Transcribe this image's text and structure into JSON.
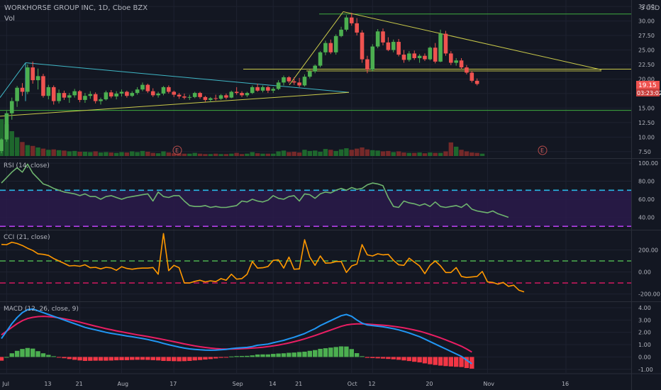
{
  "header": {
    "symbol_title": "WORKHORSE GROUP INC, 1D, Cboe BZX",
    "volume_label": "Vol",
    "currency": "USD",
    "log_toggle": "3"
  },
  "colors": {
    "background": "#131722",
    "grid": "#1e2230",
    "up": "#26a69a",
    "up_candle": "#4caf50",
    "down": "#ef5350",
    "rsi": "#6fb56f",
    "rsi_band": "#2a1a4a",
    "cci": "#ff9800",
    "macd": "#2196f3",
    "signal": "#e91e63",
    "hist_up": "#4caf50",
    "hist_down": "#f23645",
    "trend_yellow": "#c9c94a",
    "trend_green": "#3fae3f",
    "trend_cyan": "#3fb7c6"
  },
  "price_pane": {
    "current_price": "19.15",
    "countdown": "03:23:02",
    "earnings_marker": "E"
  },
  "x_axis": {
    "labels": [
      "Jul",
      "13",
      "21",
      "Aug",
      "17",
      "Sep",
      "14",
      "21",
      "Oct",
      "12",
      "20",
      "Nov",
      "16"
    ]
  },
  "chart_data": [
    {
      "type": "candlestick",
      "title": "WORKHORSE GROUP INC, 1D, Cboe BZX",
      "yticks": [
        "32.50",
        "30.00",
        "27.50",
        "25.00",
        "22.50",
        "20.00",
        "17.50",
        "15.00",
        "12.50",
        "10.00",
        "7.50"
      ],
      "ylim": [
        6.5,
        33.0
      ],
      "grid": true,
      "candles": [
        [
          7.6,
          9.8,
          7.2,
          9.6
        ],
        [
          9.6,
          14.5,
          9.2,
          14.1
        ],
        [
          14.1,
          16.8,
          13.0,
          16.2
        ],
        [
          16.2,
          18.8,
          15.2,
          18.5
        ],
        [
          18.5,
          19.3,
          17.1,
          17.8
        ],
        [
          17.8,
          22.5,
          17.4,
          22.0
        ],
        [
          22.0,
          23.0,
          19.2,
          19.8
        ],
        [
          19.8,
          21.8,
          18.2,
          20.5
        ],
        [
          20.5,
          20.9,
          16.8,
          17.1
        ],
        [
          17.1,
          19.0,
          16.5,
          18.6
        ],
        [
          18.6,
          18.9,
          15.6,
          16.2
        ],
        [
          16.2,
          18.2,
          15.8,
          17.6
        ],
        [
          17.6,
          18.0,
          16.4,
          16.8
        ],
        [
          16.8,
          17.6,
          15.9,
          17.2
        ],
        [
          17.2,
          18.3,
          16.8,
          17.9
        ],
        [
          17.9,
          18.1,
          16.0,
          16.4
        ],
        [
          16.4,
          17.6,
          15.9,
          17.1
        ],
        [
          17.1,
          17.9,
          16.6,
          17.4
        ],
        [
          17.4,
          17.7,
          15.8,
          16.2
        ],
        [
          16.2,
          16.8,
          15.6,
          16.5
        ],
        [
          16.5,
          18.0,
          16.3,
          17.7
        ],
        [
          17.7,
          18.1,
          16.7,
          17.0
        ],
        [
          17.0,
          17.9,
          16.5,
          17.5
        ],
        [
          17.5,
          18.2,
          17.0,
          17.8
        ],
        [
          17.8,
          18.0,
          16.8,
          17.1
        ],
        [
          17.1,
          17.9,
          16.9,
          17.6
        ],
        [
          17.6,
          18.6,
          17.3,
          18.2
        ],
        [
          18.2,
          19.4,
          17.9,
          19.0
        ],
        [
          19.0,
          19.2,
          17.6,
          17.9
        ],
        [
          17.9,
          18.4,
          16.9,
          17.2
        ],
        [
          17.2,
          17.8,
          16.8,
          17.5
        ],
        [
          17.5,
          18.8,
          17.2,
          18.6
        ],
        [
          18.6,
          18.9,
          17.5,
          17.8
        ],
        [
          17.8,
          18.0,
          16.9,
          17.3
        ],
        [
          17.3,
          17.6,
          16.6,
          17.0
        ],
        [
          17.0,
          17.5,
          16.5,
          16.8
        ],
        [
          16.8,
          17.3,
          16.4,
          16.9
        ],
        [
          16.9,
          17.8,
          16.7,
          17.6
        ],
        [
          17.6,
          17.8,
          16.6,
          16.9
        ],
        [
          16.9,
          17.1,
          16.1,
          16.4
        ],
        [
          16.4,
          16.9,
          16.0,
          16.7
        ],
        [
          16.7,
          17.3,
          16.3,
          16.6
        ],
        [
          16.6,
          17.4,
          16.4,
          17.2
        ],
        [
          17.2,
          17.5,
          16.5,
          16.8
        ],
        [
          16.8,
          18.0,
          16.7,
          17.8
        ],
        [
          17.8,
          18.6,
          17.3,
          17.6
        ],
        [
          17.6,
          17.9,
          16.9,
          17.2
        ],
        [
          17.2,
          17.8,
          16.9,
          17.6
        ],
        [
          17.6,
          18.9,
          17.4,
          18.6
        ],
        [
          18.6,
          19.2,
          17.8,
          18.0
        ],
        [
          18.0,
          18.9,
          17.7,
          18.6
        ],
        [
          18.6,
          18.8,
          17.6,
          18.0
        ],
        [
          18.0,
          18.6,
          17.6,
          18.3
        ],
        [
          18.3,
          19.8,
          18.1,
          19.4
        ],
        [
          19.4,
          20.6,
          18.9,
          20.3
        ],
        [
          20.3,
          20.5,
          19.3,
          19.6
        ],
        [
          19.6,
          20.3,
          19.0,
          19.4
        ],
        [
          19.4,
          20.2,
          18.6,
          18.9
        ],
        [
          18.9,
          20.8,
          18.7,
          20.4
        ],
        [
          20.4,
          21.6,
          20.1,
          21.3
        ],
        [
          21.3,
          22.5,
          21.0,
          22.3
        ],
        [
          22.3,
          24.8,
          22.0,
          24.6
        ],
        [
          24.6,
          26.6,
          24.1,
          26.2
        ],
        [
          26.2,
          26.8,
          24.3,
          24.6
        ],
        [
          24.6,
          27.7,
          24.2,
          27.4
        ],
        [
          27.4,
          29.0,
          27.2,
          28.5
        ],
        [
          28.5,
          31.0,
          28.2,
          30.6
        ],
        [
          30.6,
          31.4,
          29.2,
          29.6
        ],
        [
          29.6,
          30.5,
          27.5,
          28.0
        ],
        [
          28.0,
          28.4,
          22.8,
          23.4
        ],
        [
          23.4,
          24.0,
          21.0,
          21.6
        ],
        [
          21.6,
          26.0,
          21.3,
          25.6
        ],
        [
          25.6,
          28.6,
          25.3,
          28.2
        ],
        [
          28.2,
          28.7,
          25.8,
          26.3
        ],
        [
          26.3,
          27.2,
          24.8,
          25.0
        ],
        [
          25.0,
          26.8,
          24.6,
          26.4
        ],
        [
          26.4,
          26.9,
          23.9,
          24.2
        ],
        [
          24.2,
          25.0,
          22.8,
          23.3
        ],
        [
          23.3,
          24.8,
          23.0,
          24.4
        ],
        [
          24.4,
          24.9,
          23.3,
          23.6
        ],
        [
          23.6,
          24.3,
          22.8,
          24.0
        ],
        [
          24.0,
          24.4,
          23.1,
          23.4
        ],
        [
          23.4,
          25.6,
          23.2,
          25.4
        ],
        [
          25.4,
          26.2,
          22.7,
          23.0
        ],
        [
          23.0,
          28.5,
          22.9,
          27.8
        ],
        [
          27.8,
          28.3,
          24.0,
          24.4
        ],
        [
          24.4,
          24.8,
          22.4,
          22.8
        ],
        [
          22.8,
          23.6,
          22.3,
          23.2
        ],
        [
          23.2,
          23.6,
          21.7,
          22.0
        ],
        [
          22.0,
          22.4,
          20.8,
          21.1
        ],
        [
          21.1,
          21.4,
          19.4,
          19.7
        ],
        [
          19.7,
          20.1,
          18.9,
          19.15
        ]
      ],
      "horizontal_levels": [
        {
          "price": 31.2,
          "color": "green"
        },
        {
          "price": 21.7,
          "color": "yellow"
        },
        {
          "price": 21.4,
          "color": "yellow"
        },
        {
          "price": 14.6,
          "color": "green"
        }
      ],
      "annotations": [
        "current price 19.15",
        "countdown 03:23:02"
      ]
    },
    {
      "type": "bar",
      "title": "Vol",
      "values": [
        9.5,
        8.2,
        6.4,
        4.8,
        3.6,
        2.8,
        2.6,
        2.2,
        1.9,
        1.6,
        1.7,
        1.5,
        1.4,
        1.2,
        1.3,
        1.1,
        1.1,
        1.0,
        1.2,
        0.9,
        1.0,
        0.9,
        0.8,
        1.0,
        0.9,
        1.2,
        1.0,
        1.3,
        1.1,
        0.8,
        0.7,
        1.2,
        0.9,
        0.7,
        0.7,
        0.6,
        0.6,
        0.8,
        0.6,
        0.5,
        0.5,
        0.6,
        0.5,
        0.5,
        0.6,
        0.8,
        0.5,
        0.6,
        1.0,
        0.7,
        0.6,
        0.6,
        0.6,
        1.2,
        1.4,
        1.0,
        1.1,
        0.9,
        1.6,
        1.3,
        1.4,
        1.1,
        1.8,
        1.6,
        1.3,
        1.7,
        2.0,
        1.6,
        1.9,
        2.2,
        1.7,
        1.5,
        1.4,
        1.2,
        1.3,
        1.0,
        1.2,
        0.9,
        0.8,
        0.8,
        0.9,
        0.7,
        0.9,
        0.8,
        0.8,
        1.2,
        3.5,
        2.4,
        1.6,
        1.2,
        0.9,
        0.8,
        0.6
      ],
      "direction": "matches candle color"
    },
    {
      "type": "line",
      "title": "RSI (14, close)",
      "yticks": [
        "100.00",
        "80.00",
        "60.00",
        "40.00"
      ],
      "ylim": [
        27,
        104
      ],
      "band": [
        30,
        70
      ],
      "series": [
        {
          "name": "RSI",
          "values": [
            78,
            84,
            90,
            95,
            90,
            99,
            89,
            83,
            77,
            75,
            72,
            70,
            68,
            67,
            66,
            64,
            66,
            63,
            63,
            60,
            63,
            64,
            62,
            60,
            62,
            63,
            64,
            65,
            66,
            58,
            68,
            63,
            62,
            64,
            64,
            58,
            53,
            52,
            52,
            53,
            51,
            52,
            51,
            51,
            52,
            53,
            58,
            57,
            60,
            58,
            57,
            59,
            64,
            61,
            60,
            63,
            64,
            58,
            66,
            65,
            61,
            66,
            68,
            67,
            70,
            72,
            70,
            73,
            71,
            72,
            76,
            78,
            77,
            75,
            62,
            52,
            51,
            58,
            56,
            55,
            53,
            55,
            52,
            57,
            52,
            51,
            52,
            53,
            51,
            55,
            49,
            47,
            46,
            45,
            47,
            44,
            42,
            40
          ]
        }
      ]
    },
    {
      "type": "line",
      "title": "CCI (21, close)",
      "yticks": [
        "200.00",
        "0.00",
        "-200.00"
      ],
      "ylim": [
        -260,
        370
      ],
      "levels": [
        100,
        -100
      ],
      "series": [
        {
          "name": "CCI",
          "values": [
            250,
            248,
            270,
            258,
            240,
            215,
            195,
            165,
            160,
            150,
            122,
            100,
            78,
            55,
            58,
            52,
            65,
            38,
            42,
            28,
            42,
            37,
            15,
            48,
            32,
            25,
            32,
            35,
            35,
            40,
            -20,
            348,
            12,
            60,
            38,
            -100,
            -100,
            -85,
            -75,
            -90,
            -80,
            -88,
            -60,
            -75,
            -20,
            -65,
            -60,
            -20,
            95,
            35,
            38,
            50,
            105,
            110,
            35,
            135,
            25,
            28,
            292,
            135,
            60,
            145,
            80,
            82,
            95,
            95,
            -5,
            55,
            72,
            248,
            155,
            145,
            165,
            155,
            160,
            105,
            65,
            60,
            125,
            90,
            55,
            -15,
            60,
            100,
            55,
            -5,
            -5,
            40,
            -40,
            -50,
            -45,
            -40,
            5,
            -90,
            -95,
            -110,
            -95,
            -130,
            -120,
            -165,
            -180
          ]
        }
      ]
    },
    {
      "type": "line",
      "title": "MACD (12, 26, close, 9)",
      "yticks": [
        "4.00",
        "3.00",
        "2.00",
        "1.00",
        "0.00",
        "-1.00"
      ],
      "ylim": [
        -1.3,
        4.4
      ],
      "series": [
        {
          "name": "MACD",
          "values": [
            1.5,
            2.1,
            2.7,
            3.2,
            3.6,
            3.85,
            3.9,
            3.75,
            3.6,
            3.45,
            3.3,
            3.15,
            3.0,
            2.85,
            2.7,
            2.55,
            2.4,
            2.3,
            2.2,
            2.1,
            2.0,
            1.92,
            1.85,
            1.78,
            1.7,
            1.64,
            1.57,
            1.5,
            1.42,
            1.32,
            1.22,
            1.1,
            1.0,
            0.9,
            0.8,
            0.72,
            0.66,
            0.62,
            0.58,
            0.56,
            0.55,
            0.56,
            0.58,
            0.62,
            0.68,
            0.72,
            0.75,
            0.78,
            0.85,
            0.95,
            1.0,
            1.05,
            1.15,
            1.25,
            1.35,
            1.48,
            1.6,
            1.75,
            1.9,
            2.1,
            2.3,
            2.55,
            2.75,
            2.95,
            3.15,
            3.35,
            3.45,
            3.3,
            3.0,
            2.75,
            2.6,
            2.55,
            2.5,
            2.45,
            2.38,
            2.3,
            2.2,
            2.08,
            1.95,
            1.8,
            1.65,
            1.45,
            1.25,
            1.05,
            0.85,
            0.65,
            0.45,
            0.25,
            0.05,
            -0.25,
            -0.55
          ]
        },
        {
          "name": "Signal",
          "values": [
            1.8,
            2.1,
            2.4,
            2.7,
            2.95,
            3.12,
            3.22,
            3.28,
            3.3,
            3.28,
            3.24,
            3.18,
            3.1,
            3.02,
            2.93,
            2.83,
            2.72,
            2.61,
            2.5,
            2.4,
            2.3,
            2.21,
            2.12,
            2.04,
            1.96,
            1.88,
            1.8,
            1.73,
            1.66,
            1.58,
            1.5,
            1.42,
            1.33,
            1.24,
            1.15,
            1.06,
            0.98,
            0.9,
            0.83,
            0.77,
            0.72,
            0.68,
            0.65,
            0.64,
            0.64,
            0.65,
            0.67,
            0.69,
            0.72,
            0.75,
            0.79,
            0.84,
            0.9,
            0.97,
            1.05,
            1.14,
            1.24,
            1.35,
            1.47,
            1.6,
            1.74,
            1.89,
            2.04,
            2.19,
            2.34,
            2.49,
            2.6,
            2.66,
            2.69,
            2.69,
            2.67,
            2.64,
            2.61,
            2.58,
            2.54,
            2.49,
            2.43,
            2.36,
            2.28,
            2.19,
            2.09,
            1.97,
            1.84,
            1.7,
            1.55,
            1.39,
            1.22,
            1.05,
            0.87,
            0.65,
            0.4
          ]
        }
      ],
      "histogram": "MACD minus Signal"
    }
  ]
}
